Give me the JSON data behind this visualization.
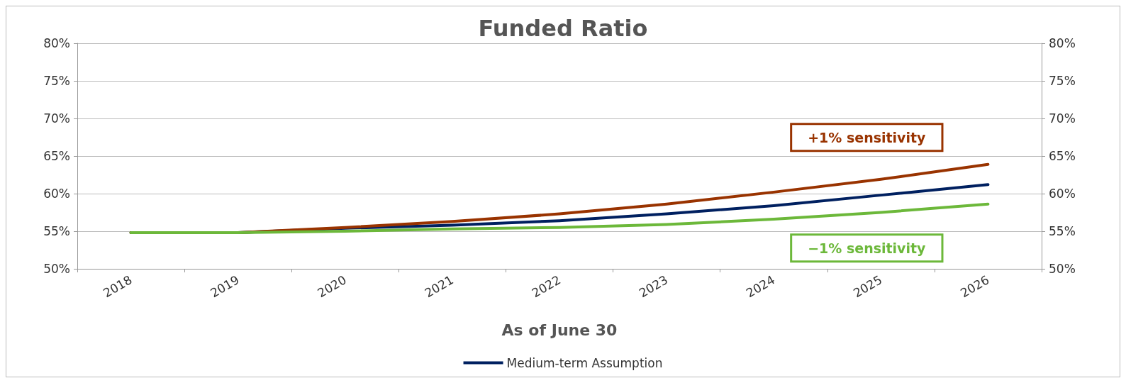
{
  "chart_data": {
    "type": "line",
    "title": "Funded Ratio",
    "xlabel": "As of June 30",
    "categories": [
      "2018",
      "2019",
      "2020",
      "2021",
      "2022",
      "2023",
      "2024",
      "2025",
      "2026"
    ],
    "series": [
      {
        "name": "Medium-term Assumption",
        "color": "#002060",
        "values": [
          54.8,
          54.8,
          55.4,
          55.8,
          56.4,
          57.3,
          58.4,
          59.8,
          61.2
        ]
      },
      {
        "name": "+1% sensitivity",
        "color": "#993300",
        "values": [
          54.8,
          54.8,
          55.5,
          56.3,
          57.3,
          58.6,
          60.2,
          61.9,
          63.9
        ]
      },
      {
        "name": "−1% sensitivity",
        "color": "#6cb83a",
        "values": [
          54.8,
          54.8,
          55.0,
          55.3,
          55.5,
          55.9,
          56.6,
          57.5,
          58.6
        ]
      }
    ],
    "ylim": [
      50,
      80
    ],
    "yticks": [
      {
        "value": 50,
        "label": "50%"
      },
      {
        "value": 55,
        "label": "55%"
      },
      {
        "value": 60,
        "label": "60%"
      },
      {
        "value": 65,
        "label": "65%"
      },
      {
        "value": 70,
        "label": "70%"
      },
      {
        "value": 75,
        "label": "75%"
      },
      {
        "value": 80,
        "label": "80%"
      }
    ],
    "y2lim": [
      50,
      80
    ],
    "y2ticks": [
      {
        "value": 50,
        "label": "50%"
      },
      {
        "value": 55,
        "label": "55%"
      },
      {
        "value": 60,
        "label": "60%"
      },
      {
        "value": 65,
        "label": "65%"
      },
      {
        "value": 70,
        "label": "70%"
      },
      {
        "value": 75,
        "label": "75%"
      },
      {
        "value": 80,
        "label": "80%"
      }
    ],
    "grid": "y",
    "legend": "bottom",
    "marker": "none",
    "line_style": "solid"
  }
}
